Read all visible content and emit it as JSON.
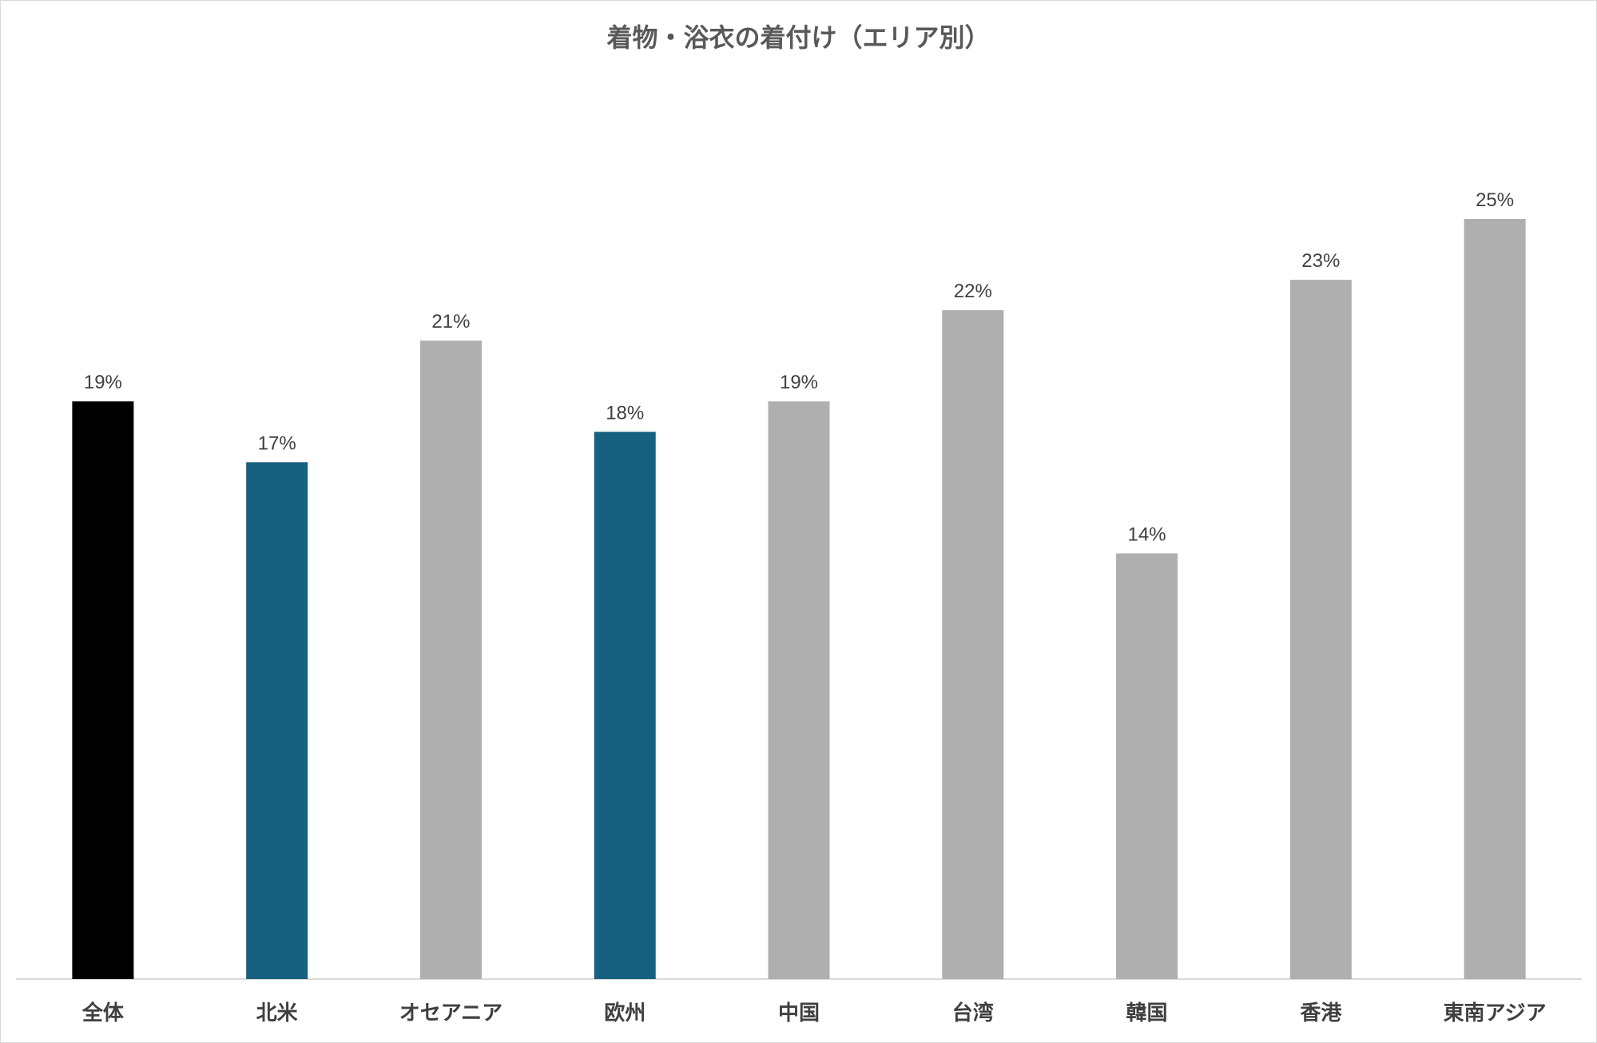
{
  "chart_data": {
    "type": "bar",
    "title": "着物・浴衣の着付け（エリア別）",
    "categories": [
      "全体",
      "北米",
      "オセアニア",
      "欧州",
      "中国",
      "台湾",
      "韓国",
      "香港",
      "東南アジア"
    ],
    "values": [
      19,
      17,
      21,
      18,
      19,
      22,
      14,
      23,
      25
    ],
    "labels": [
      "19%",
      "17%",
      "21%",
      "18%",
      "19%",
      "22%",
      "14%",
      "23%",
      "25%"
    ],
    "colors": [
      "#000000",
      "#17607f",
      "#afafaf",
      "#17607f",
      "#afafaf",
      "#afafaf",
      "#afafaf",
      "#afafaf",
      "#afafaf"
    ],
    "unit": "%",
    "ylim": [
      0,
      25
    ],
    "grid": false,
    "legend": "none",
    "xlabel": "",
    "ylabel": ""
  }
}
